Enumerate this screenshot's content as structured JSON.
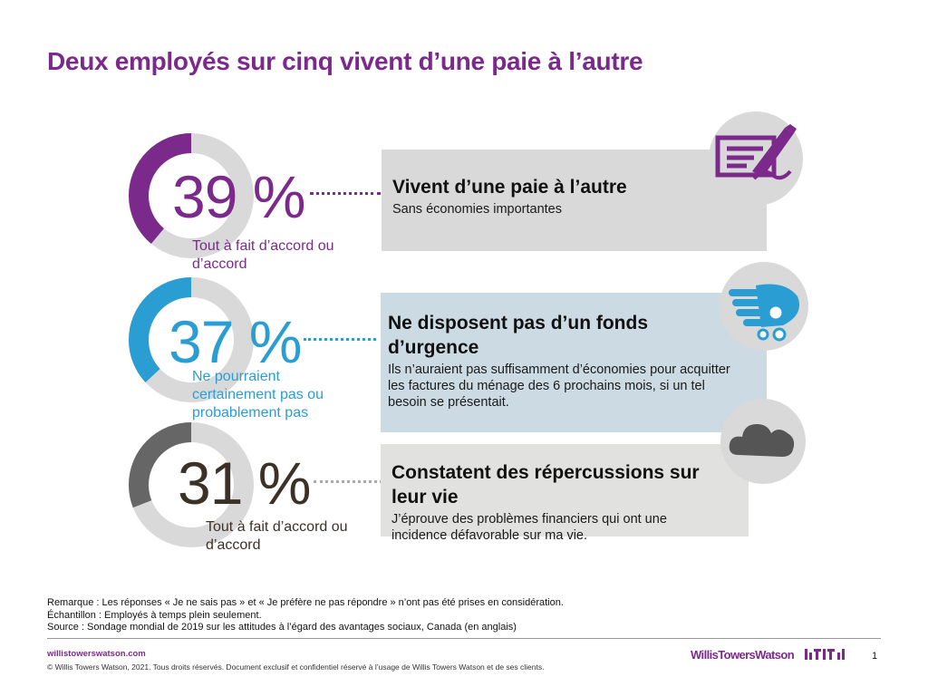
{
  "title": "Deux employés sur cinq vivent d’une paie à l’autre",
  "colors": {
    "purple": "#7b2a8b",
    "blue": "#2a9ed3",
    "dark_gray": "#666666",
    "gray_track": "#d9d9d9",
    "box_gray": "#d9d9d9",
    "box_blue": "#ccdbe3",
    "box_light": "#e1e2df"
  },
  "stats": [
    {
      "value": 39,
      "percent_text": "39 %",
      "label": "Tout à fait d’accord ou d’accord",
      "color": "#7b2a8b",
      "box_title": "Vivent d’une paie à l’autre",
      "box_subtitle": "Sans économies importantes",
      "icon": "check-writing-icon"
    },
    {
      "value": 37,
      "percent_text": "37 %",
      "label": "Ne pourraient certainement pas ou probablement pas",
      "color": "#2a9ed3",
      "box_title": "Ne disposent pas d’un fonds d’urgence",
      "box_subtitle": "Ils n’auraient pas suffisamment d’économies pour acquitter les factures du ménage des 6 prochains mois, si un tel besoin se présentait.",
      "icon": "hand-coins-icon"
    },
    {
      "value": 31,
      "percent_text": "31 %",
      "label": "Tout à fait d’accord ou d’accord",
      "color": "#666666",
      "box_title": "Constatent des répercussions sur leur vie",
      "box_subtitle": "J’éprouve des problèmes financiers qui ont une incidence défavorable sur ma vie.",
      "icon": "cloud-icon"
    }
  ],
  "footnotes": {
    "remark": "Remarque : Les réponses « Je ne sais pas » et « Je préfère ne pas répondre » n’ont pas été prises en considération.",
    "sample": "Échantillon : Employés à temps plein seulement.",
    "source": "Source : Sondage mondial de 2019 sur les attitudes à l’égard des avantages sociaux, Canada (en anglais)"
  },
  "footer": {
    "website": "willistowerswatson.com",
    "copyright": "© Willis Towers Watson, 2021. Tous droits réservés. Document exclusif et confidentiel réservé à l’usage de Willis Towers Watson et de ses clients.",
    "brand": "WillisTowersWatson",
    "page_number": "1"
  }
}
